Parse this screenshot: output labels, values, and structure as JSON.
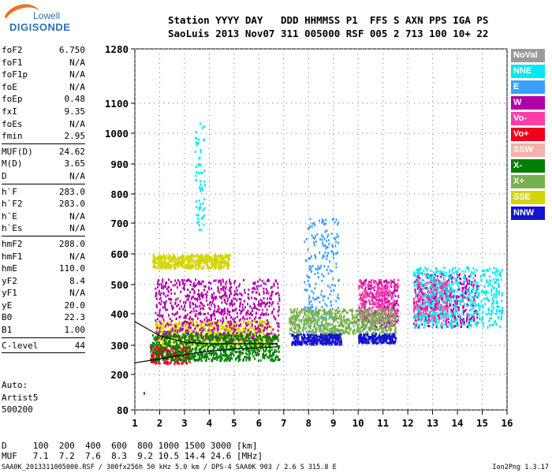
{
  "logo": {
    "brand_top": "Lowell",
    "brand_main": "DIGISONDE"
  },
  "header": {
    "line1": "Station YYYY DAY   DDD HHMMSS P1  FFS S AXN PPS IGA PS",
    "line2": "SaoLuis 2013 Nov07 311 005000 RSF 005 2 713 100 10+ 22"
  },
  "params": [
    {
      "label": "foF2",
      "value": "6.750"
    },
    {
      "label": "foF1",
      "value": "N/A"
    },
    {
      "label": "foF1p",
      "value": "N/A"
    },
    {
      "label": "foE",
      "value": "N/A"
    },
    {
      "label": "foEp",
      "value": "0.48"
    },
    {
      "label": "fxI",
      "value": "9.35"
    },
    {
      "label": "foEs",
      "value": "N/A"
    },
    {
      "label": "fmin",
      "value": "2.95"
    },
    {
      "divider": true
    },
    {
      "label": "MUF(D)",
      "value": "24.62"
    },
    {
      "label": "M(D)",
      "value": "3.65"
    },
    {
      "label": "D",
      "value": "N/A"
    },
    {
      "divider": true
    },
    {
      "label": "h`F",
      "value": "283.0"
    },
    {
      "label": "h`F2",
      "value": "283.0"
    },
    {
      "label": "h`E",
      "value": "N/A"
    },
    {
      "label": "h`Es",
      "value": "N/A"
    },
    {
      "divider": true
    },
    {
      "label": "hmF2",
      "value": "288.0"
    },
    {
      "label": "hmF1",
      "value": "N/A"
    },
    {
      "label": "hmE",
      "value": "110.0"
    },
    {
      "label": "yF2",
      "value": "8.4"
    },
    {
      "label": "yF1",
      "value": "N/A"
    },
    {
      "label": "yE",
      "value": "20.0"
    },
    {
      "label": "B0",
      "value": "22.3"
    },
    {
      "label": "B1",
      "value": "1.00"
    },
    {
      "divider": true
    },
    {
      "label": "C-level",
      "value": "44"
    },
    {
      "divider": true
    }
  ],
  "auto": {
    "line1": "Auto:",
    "line2": "Artist5",
    "line3": "500200"
  },
  "legend": [
    {
      "label": "NoVal",
      "color": "#9a9a9a"
    },
    {
      "label": "NNE",
      "color": "#00e8f0"
    },
    {
      "label": "E",
      "color": "#3aa0ff"
    },
    {
      "label": "W",
      "color": "#b000a8"
    },
    {
      "label": "Vo-",
      "color": "#ff3da8"
    },
    {
      "label": "Vo+",
      "color": "#f0001a"
    },
    {
      "label": "SSW",
      "color": "#f4b0a8"
    },
    {
      "label": "X-",
      "color": "#008000"
    },
    {
      "label": "X+",
      "color": "#78b050"
    },
    {
      "label": "SSE",
      "color": "#d4d400"
    },
    {
      "label": "NNW",
      "color": "#1414d0"
    }
  ],
  "chart_data": {
    "type": "scatter",
    "title": "",
    "xlabel": "",
    "ylabel": "",
    "x_ticks": [
      1,
      2,
      3,
      4,
      5,
      6,
      7,
      8,
      9,
      10,
      11,
      12,
      13,
      14,
      15,
      16
    ],
    "y_ticks": [
      80,
      200,
      300,
      400,
      500,
      600,
      700,
      800,
      900,
      1000,
      1100,
      1280
    ],
    "xlim": [
      1,
      16
    ],
    "ylim": [
      80,
      1280
    ],
    "y_scale": "piecewise (as printed)",
    "grid": true,
    "series": [
      {
        "name": "NNW",
        "clusters": [
          {
            "x": [
              7.3,
              9.3
            ],
            "y": [
              305,
              340
            ]
          },
          {
            "x": [
              10.0,
              11.5
            ],
            "y": [
              310,
              340
            ]
          }
        ]
      },
      {
        "name": "SSE",
        "clusters": [
          {
            "x": [
              1.7,
              4.8
            ],
            "y": [
              555,
              600
            ]
          },
          {
            "x": [
              1.8,
              6.5
            ],
            "y": [
              300,
              380
            ]
          }
        ]
      },
      {
        "name": "W",
        "clusters": [
          {
            "x": [
              1.8,
              6.8
            ],
            "y": [
              320,
              520
            ]
          },
          {
            "x": [
              10.0,
              11.6
            ],
            "y": [
              360,
              520
            ]
          },
          {
            "x": [
              12.2,
              14.8
            ],
            "y": [
              360,
              540
            ]
          }
        ]
      },
      {
        "name": "Vo+",
        "clusters": [
          {
            "x": [
              1.6,
              3.2
            ],
            "y": [
              240,
              300
            ]
          }
        ]
      },
      {
        "name": "Vo-",
        "clusters": [
          {
            "x": [
              10.0,
              11.6
            ],
            "y": [
              380,
              520
            ]
          },
          {
            "x": [
              12.2,
              13.6
            ],
            "y": [
              380,
              520
            ]
          }
        ]
      },
      {
        "name": "NNE",
        "clusters": [
          {
            "x": [
              3.4,
              3.8
            ],
            "y": [
              680,
              1040
            ]
          },
          {
            "x": [
              12.2,
              15.8
            ],
            "y": [
              360,
              560
            ]
          }
        ]
      },
      {
        "name": "E",
        "clusters": [
          {
            "x": [
              7.8,
              9.2
            ],
            "y": [
              340,
              720
            ]
          }
        ]
      },
      {
        "name": "X-",
        "clusters": [
          {
            "x": [
              1.6,
              6.8
            ],
            "y": [
              250,
              340
            ]
          }
        ]
      },
      {
        "name": "X+",
        "clusters": [
          {
            "x": [
              7.2,
              11.5
            ],
            "y": [
              340,
              420
            ]
          }
        ]
      }
    ],
    "trace_curve": {
      "x": [
        1.0,
        2.0,
        3.0,
        4.0,
        5.0,
        6.0,
        6.75
      ],
      "y": [
        240,
        253,
        268,
        280,
        287,
        292,
        295
      ]
    },
    "trace_curve2": {
      "x": [
        1.0,
        2.0,
        3.0,
        4.0,
        5.0,
        6.0,
        6.75
      ],
      "y": [
        375,
        330,
        310,
        305,
        305,
        305,
        305
      ]
    },
    "outliers": [
      {
        "x": 1.35,
        "y": 140
      }
    ]
  },
  "muf_table": {
    "line1": "D     100  200  400  600  800 1000 1500 3000 [km]",
    "line2": "MUF   7.1  7.2  7.6  8.3  9.2 10.5 14.4 24.6 [MHz]"
  },
  "footer": {
    "left": "SAA0K_2013311005000.RSF / 300fx256h 50 kHz 5.0 km / DPS-4 SAA0K 903 / 2.6 S 315.8 E",
    "right": "Ion2Png 1.3.17"
  }
}
